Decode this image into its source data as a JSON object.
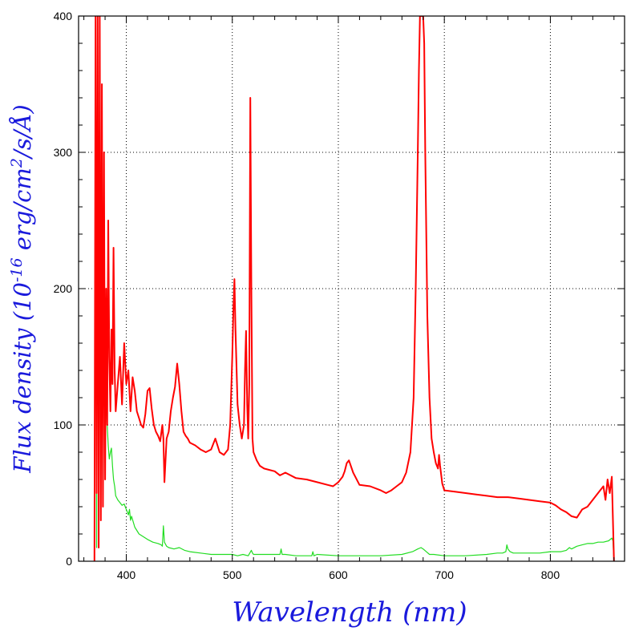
{
  "chart_data": {
    "type": "line",
    "xlabel": "Wavelength (nm)",
    "ylabel": {
      "prefix": "Flux density (10",
      "exp1": "-16",
      "mid": " erg/cm",
      "exp2": "2",
      "suffix": "/s/Å)"
    },
    "xlim": [
      355,
      870
    ],
    "ylim": [
      0,
      400
    ],
    "xticks": [
      400,
      500,
      600,
      700,
      800
    ],
    "yticks": [
      0,
      100,
      200,
      300,
      400
    ],
    "grid": true,
    "series": [
      {
        "color": "#ff0000",
        "x": [
          370,
          371,
          372,
          373,
          374,
          375,
          376,
          377,
          378,
          379,
          380,
          381,
          382,
          383,
          384,
          385,
          386,
          387,
          388,
          389,
          390,
          392,
          394,
          396,
          398,
          400,
          402,
          404,
          406,
          408,
          410,
          412,
          414,
          416,
          418,
          420,
          422,
          424,
          426,
          428,
          430,
          432,
          434,
          435,
          436,
          438,
          440,
          442,
          444,
          446,
          448,
          450,
          452,
          454,
          456,
          458,
          460,
          465,
          470,
          475,
          480,
          484,
          488,
          492,
          496,
          498,
          500,
          501,
          502,
          503,
          505,
          507,
          509,
          511,
          512,
          513,
          514,
          515,
          516,
          517,
          518,
          519,
          520,
          521,
          523,
          526,
          530,
          535,
          540,
          545,
          550,
          560,
          570,
          580,
          590,
          595,
          600,
          604,
          606,
          608,
          610,
          614,
          620,
          630,
          640,
          645,
          650,
          655,
          660,
          664,
          668,
          671,
          673,
          675,
          676,
          677,
          678,
          679,
          680,
          681,
          682,
          684,
          686,
          688,
          690,
          692,
          694,
          695,
          696,
          698,
          700,
          710,
          720,
          730,
          740,
          750,
          760,
          770,
          780,
          790,
          800,
          805,
          810,
          815,
          820,
          825,
          830,
          835,
          840,
          845,
          850,
          852,
          854,
          856,
          858,
          860
        ],
        "y": [
          0,
          400,
          50,
          400,
          10,
          400,
          30,
          350,
          40,
          300,
          60,
          200,
          100,
          250,
          150,
          110,
          170,
          130,
          230,
          140,
          110,
          130,
          150,
          115,
          160,
          130,
          140,
          110,
          135,
          125,
          110,
          105,
          100,
          98,
          108,
          125,
          127,
          112,
          100,
          95,
          92,
          88,
          100,
          90,
          58,
          90,
          95,
          110,
          120,
          128,
          145,
          130,
          110,
          95,
          92,
          90,
          87,
          85,
          82,
          80,
          82,
          90,
          80,
          78,
          82,
          100,
          150,
          185,
          207,
          170,
          115,
          100,
          90,
          100,
          140,
          169,
          115,
          90,
          130,
          340,
          200,
          90,
          80,
          78,
          74,
          70,
          68,
          67,
          66,
          63,
          65,
          61,
          60,
          58,
          56,
          55,
          58,
          62,
          66,
          72,
          74,
          65,
          56,
          55,
          52,
          50,
          52,
          55,
          58,
          65,
          80,
          120,
          200,
          300,
          360,
          400,
          400,
          400,
          400,
          380,
          300,
          180,
          120,
          90,
          80,
          72,
          68,
          78,
          70,
          57,
          52,
          51,
          50,
          49,
          48,
          47,
          47,
          46,
          45,
          44,
          43,
          41,
          38,
          36,
          33,
          32,
          38,
          40,
          45,
          50,
          55,
          45,
          60,
          50,
          62,
          0
        ]
      },
      {
        "color": "#22dd22",
        "x": [
          370,
          371,
          372,
          373,
          374,
          375,
          376,
          377,
          378,
          379,
          380,
          381,
          382,
          383,
          384,
          385,
          386,
          387,
          388,
          389,
          390,
          392,
          394,
          396,
          398,
          400,
          402,
          403,
          404,
          405,
          408,
          412,
          416,
          420,
          425,
          430,
          433,
          434,
          435,
          436,
          438,
          440,
          445,
          450,
          455,
          460,
          470,
          480,
          490,
          500,
          505,
          510,
          515,
          518,
          519,
          520,
          525,
          530,
          540,
          545,
          546,
          547,
          550,
          560,
          570,
          575,
          576,
          577,
          580,
          600,
          620,
          640,
          660,
          670,
          675,
          678,
          680,
          683,
          686,
          690,
          700,
          720,
          740,
          750,
          755,
          758,
          759,
          760,
          762,
          765,
          770,
          780,
          790,
          800,
          810,
          815,
          818,
          820,
          825,
          830,
          835,
          840,
          845,
          850,
          855,
          858,
          859,
          860
        ],
        "y": [
          0,
          400,
          10,
          350,
          20,
          300,
          50,
          250,
          90,
          180,
          140,
          120,
          100,
          85,
          75,
          80,
          83,
          70,
          60,
          55,
          48,
          45,
          43,
          41,
          42,
          38,
          34,
          38,
          30,
          33,
          25,
          20,
          18,
          16,
          14,
          13,
          12,
          11,
          26,
          14,
          11,
          10,
          9,
          10,
          8,
          7,
          6,
          5,
          5,
          5,
          4,
          5,
          4,
          8,
          6,
          5,
          5,
          5,
          5,
          5,
          9,
          5,
          5,
          4,
          4,
          4,
          7,
          4,
          5,
          4,
          4,
          4,
          5,
          7,
          9,
          10,
          9,
          7,
          5,
          5,
          4,
          4,
          5,
          6,
          6,
          7,
          12,
          9,
          7,
          6,
          6,
          6,
          6,
          7,
          7,
          8,
          10,
          9,
          11,
          12,
          13,
          13,
          14,
          14,
          15,
          17,
          15,
          0
        ]
      }
    ]
  }
}
